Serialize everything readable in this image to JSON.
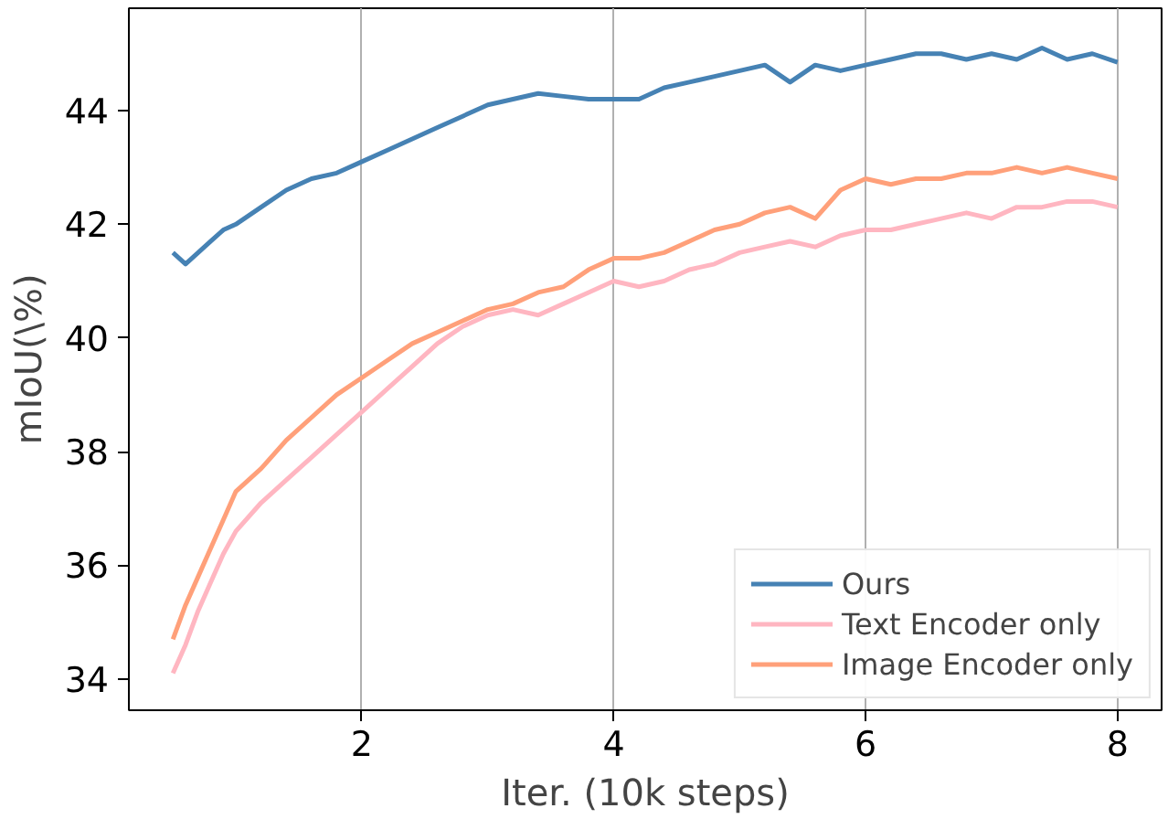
{
  "chart_data": {
    "type": "line",
    "xlabel": "Iter. (10k steps)",
    "ylabel": "mIoU(\\%)",
    "x": [
      0.5,
      0.6,
      0.7,
      0.8,
      0.9,
      1.0,
      1.2,
      1.4,
      1.6,
      1.8,
      2.0,
      2.2,
      2.4,
      2.6,
      2.8,
      3.0,
      3.2,
      3.4,
      3.6,
      3.8,
      4.0,
      4.2,
      4.4,
      4.6,
      4.8,
      5.0,
      5.2,
      5.4,
      5.6,
      5.8,
      6.0,
      6.2,
      6.4,
      6.6,
      6.8,
      7.0,
      7.2,
      7.4,
      7.6,
      7.8,
      8.0
    ],
    "series": [
      {
        "name": "Ours",
        "color": "#4682b4",
        "values": [
          41.5,
          41.3,
          41.5,
          41.7,
          41.9,
          42.0,
          42.3,
          42.6,
          42.8,
          42.9,
          43.1,
          43.3,
          43.5,
          43.7,
          43.9,
          44.1,
          44.2,
          44.3,
          44.25,
          44.2,
          44.2,
          44.2,
          44.4,
          44.5,
          44.6,
          44.7,
          44.8,
          44.5,
          44.8,
          44.7,
          44.8,
          44.9,
          45.0,
          45.0,
          44.9,
          45.0,
          44.9,
          45.1,
          44.9,
          45.0,
          44.85
        ]
      },
      {
        "name": "Text Encoder only",
        "color": "#ffb6c1",
        "values": [
          34.1,
          34.6,
          35.2,
          35.7,
          36.2,
          36.6,
          37.1,
          37.5,
          37.9,
          38.3,
          38.7,
          39.1,
          39.5,
          39.9,
          40.2,
          40.4,
          40.5,
          40.4,
          40.6,
          40.8,
          41.0,
          40.9,
          41.0,
          41.2,
          41.3,
          41.5,
          41.6,
          41.7,
          41.6,
          41.8,
          41.9,
          41.9,
          42.0,
          42.1,
          42.2,
          42.1,
          42.3,
          42.3,
          42.4,
          42.4,
          42.3
        ]
      },
      {
        "name": "Image Encoder only",
        "color": "#ffa07a",
        "values": [
          34.7,
          35.3,
          35.8,
          36.3,
          36.8,
          37.3,
          37.7,
          38.2,
          38.6,
          39.0,
          39.3,
          39.6,
          39.9,
          40.1,
          40.3,
          40.5,
          40.6,
          40.8,
          40.9,
          41.2,
          41.4,
          41.4,
          41.5,
          41.7,
          41.9,
          42.0,
          42.2,
          42.3,
          42.1,
          42.6,
          42.8,
          42.7,
          42.8,
          42.8,
          42.9,
          42.9,
          43.0,
          42.9,
          43.0,
          42.9,
          42.8
        ]
      }
    ],
    "xlim": [
      0.15,
      8.35
    ],
    "ylim": [
      33.45,
      45.8
    ],
    "xticks": [
      2,
      4,
      6,
      8
    ],
    "yticks": [
      34,
      36,
      38,
      40,
      42,
      44
    ],
    "grid": "x",
    "legend": "bottom right",
    "line_style": "solid",
    "marker": "none"
  }
}
